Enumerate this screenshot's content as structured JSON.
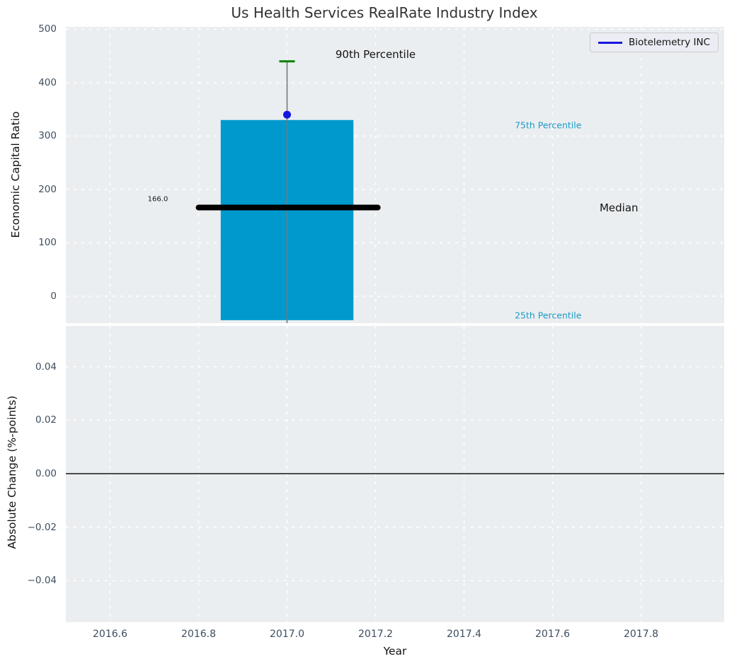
{
  "figure": {
    "title": "Us Health Services RealRate Industry Index",
    "title_color": "#333333"
  },
  "text_colors": {
    "ticks": "#3D4E60",
    "axis_label": "#111111"
  },
  "chart_data": [
    {
      "type": "bar",
      "subplot": "top",
      "title": "Us Health Services RealRate Industry Index",
      "ylabel": "Economic Capital Ratio",
      "xlim": [
        2016.5,
        2017.988
      ],
      "ylim": [
        -50.5,
        504.5
      ],
      "yticks": [
        0,
        100,
        200,
        300,
        400,
        500
      ],
      "yticklabels": [
        "0",
        "100",
        "200",
        "300",
        "400",
        "500"
      ],
      "xticks": [
        2016.6,
        2016.8,
        2017.0,
        2017.2,
        2017.4,
        2017.6,
        2017.8
      ],
      "show_xticklabels": false,
      "grid": true,
      "background": "#EBEEF0",
      "gridline_color": "#FFFFFF",
      "box": {
        "x": 2017.0,
        "bar_x_range": [
          2016.85,
          2017.15
        ],
        "bar_top_75th": 330,
        "bar_bottom_25th": -45,
        "bar_color": "#0099CD",
        "median": 166,
        "median_line_x_range": [
          2016.8,
          2017.205
        ],
        "median_color": "#000000",
        "whisker_top_90th": 440,
        "whisker_bottom": -50.5,
        "whisker_color": "#777777",
        "cap_color": "#008000"
      },
      "company_point": {
        "label": "Biotelemetry INC",
        "x": 2017.0,
        "y": 340,
        "color": "#1515E0"
      },
      "legend": {
        "label": "Biotelemetry INC",
        "line_color": "#1515E0",
        "position": "upper right"
      },
      "annotations": [
        {
          "text": "90th Percentile",
          "x": 2017.2,
          "y": 453,
          "color": "#141414",
          "size": 15
        },
        {
          "text": "75th Percentile",
          "x": 2017.59,
          "y": 320,
          "color": "#1C9AC8",
          "size": 12.5
        },
        {
          "text": "Median",
          "x": 2017.75,
          "y": 166,
          "color": "#141414",
          "size": 15
        },
        {
          "text": "25th Percentile",
          "x": 2017.59,
          "y": -36,
          "color": "#1C9AC8",
          "size": 12.5
        },
        {
          "text": "166.0",
          "x": 2016.708,
          "y": 181,
          "color": "#141414",
          "size": 10
        }
      ]
    },
    {
      "type": "line",
      "subplot": "bottom",
      "ylabel": "Absolute Change (%-points)",
      "xlabel": "Year",
      "xlim": [
        2016.5,
        2017.988
      ],
      "ylim": [
        -0.0555,
        0.0552
      ],
      "yticks": [
        0.04,
        0.02,
        0.0,
        -0.02,
        -0.04
      ],
      "yticklabels": [
        "0.04",
        "0.02",
        "0.00",
        "−0.02",
        "−0.04"
      ],
      "xticks": [
        2016.6,
        2016.8,
        2017.0,
        2017.2,
        2017.4,
        2017.6,
        2017.8
      ],
      "xticklabels": [
        "2016.6",
        "2016.8",
        "2017.0",
        "2017.2",
        "2017.4",
        "2017.6",
        "2017.8"
      ],
      "show_xticklabels": true,
      "grid": true,
      "background": "#EBEEF0",
      "gridline_color": "#FFFFFF",
      "zero_line": {
        "y": 0.0,
        "color": "#000000"
      },
      "series": []
    }
  ]
}
